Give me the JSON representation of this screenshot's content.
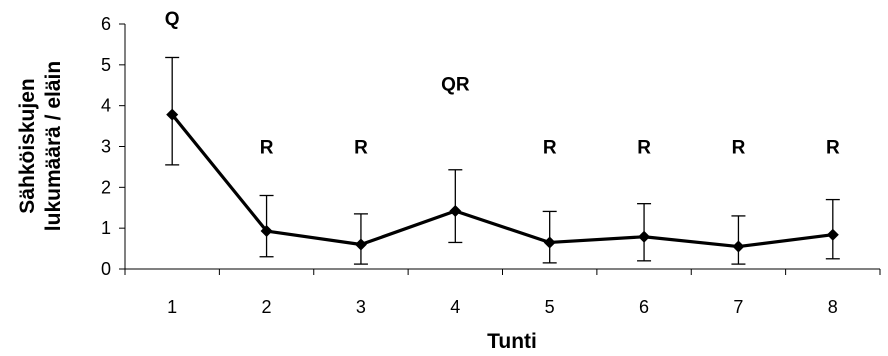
{
  "chart_data": {
    "type": "line",
    "title": "",
    "xlabel": "Tunti",
    "ylabel_lines": [
      "Sähköiskujen",
      "lukumäärä / eläin"
    ],
    "categories": [
      "1",
      "2",
      "3",
      "4",
      "5",
      "6",
      "7",
      "8"
    ],
    "y_ticks": [
      "0",
      "1",
      "2",
      "3",
      "4",
      "5",
      "6"
    ],
    "ylim": [
      0,
      6
    ],
    "grid": false,
    "series": [
      {
        "values": [
          3.78,
          0.93,
          0.6,
          1.42,
          0.65,
          0.79,
          0.55,
          0.84
        ],
        "error_upper": [
          5.18,
          1.8,
          1.35,
          2.43,
          1.41,
          1.6,
          1.3,
          1.7
        ],
        "error_lower": [
          2.55,
          0.3,
          0.12,
          0.65,
          0.15,
          0.2,
          0.12,
          0.25
        ],
        "marker": "diamond",
        "color": "#000000"
      }
    ],
    "annotations": [
      {
        "x": "1",
        "y": 6.0,
        "text": "Q"
      },
      {
        "x": "2",
        "y": 2.85,
        "text": "R"
      },
      {
        "x": "3",
        "y": 2.85,
        "text": "R"
      },
      {
        "x": "4",
        "y": 4.4,
        "text": "QR"
      },
      {
        "x": "5",
        "y": 2.85,
        "text": "R"
      },
      {
        "x": "6",
        "y": 2.85,
        "text": "R"
      },
      {
        "x": "7",
        "y": 2.85,
        "text": "R"
      },
      {
        "x": "8",
        "y": 2.85,
        "text": "R"
      }
    ]
  }
}
